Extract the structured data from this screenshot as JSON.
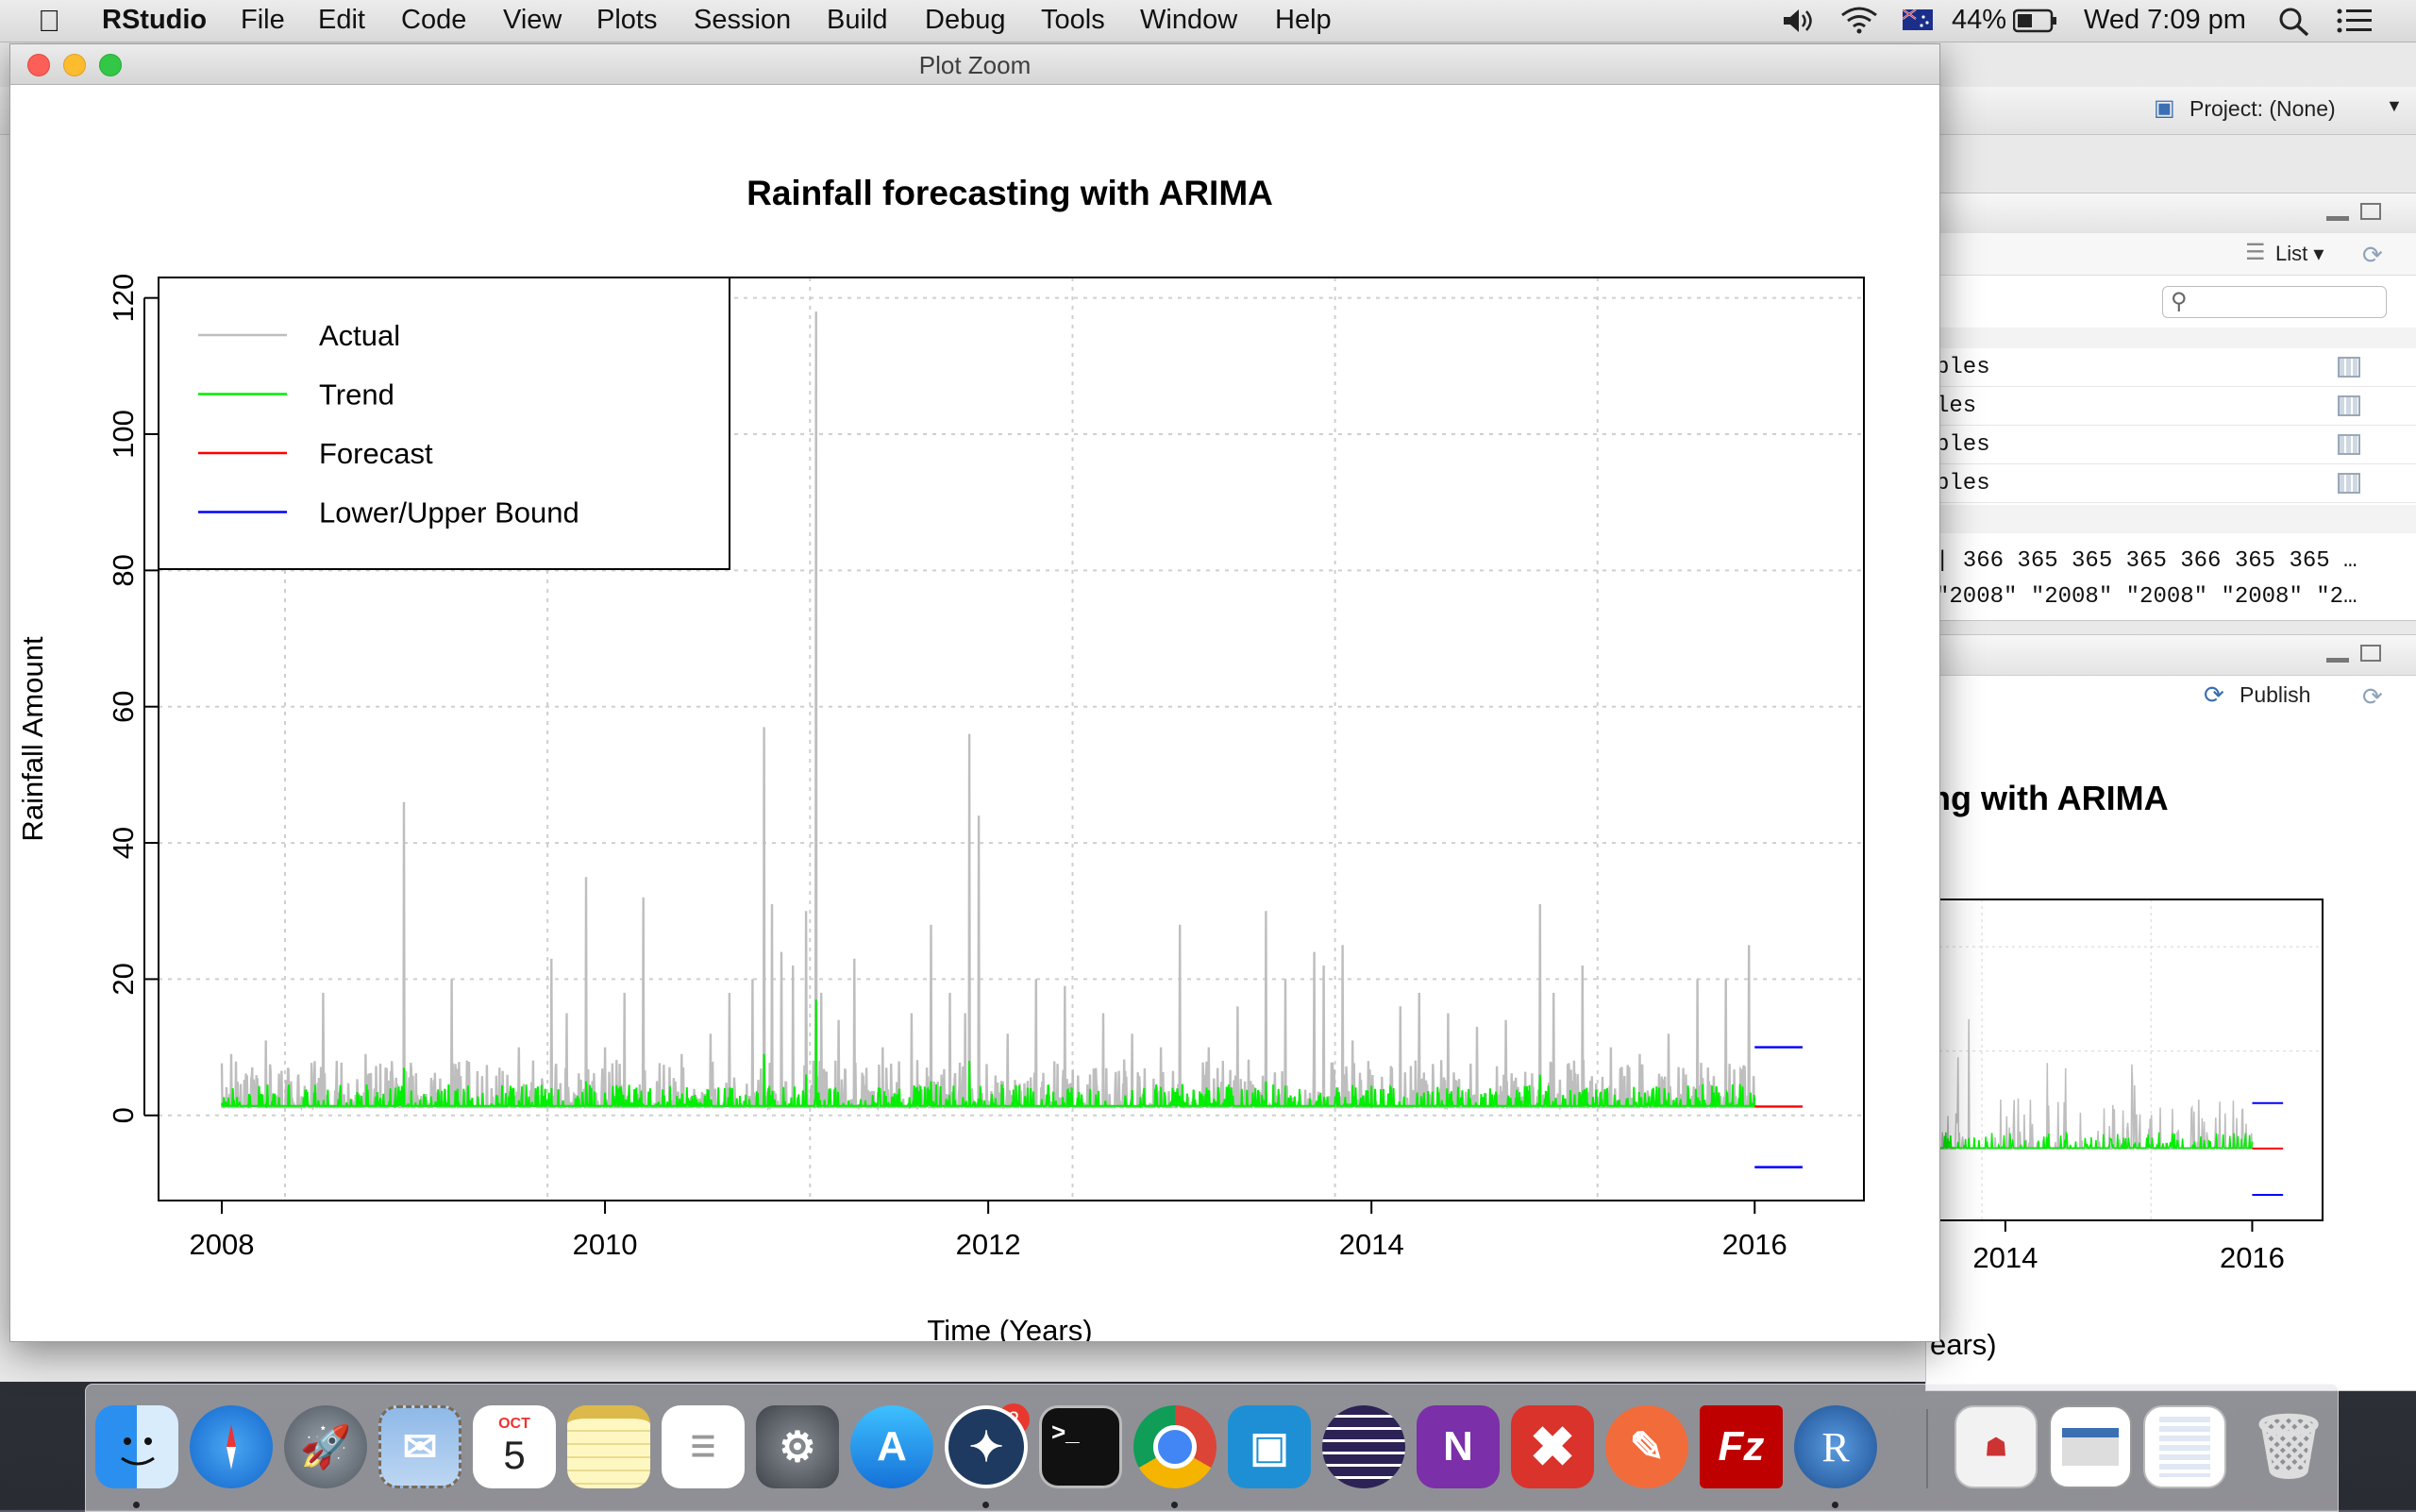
{
  "menubar": {
    "app_name": "RStudio",
    "menus": [
      "File",
      "Edit",
      "Code",
      "View",
      "Plots",
      "Session",
      "Build",
      "Debug",
      "Tools",
      "Window",
      "Help"
    ],
    "battery": "44%",
    "clock": "Wed 7:09 pm"
  },
  "background_window": {
    "project_label": "Project: (None)",
    "env_pane": {
      "list_label": "List",
      "rows": [
        "ples",
        "les",
        "ples",
        "ples"
      ],
      "value_line_1": "| 366 365 365 365 366 365 365 …",
      "value_line_2": "\"2008\" \"2008\" \"2008\" \"2008\" \"2…"
    },
    "plots_pane": {
      "publish_label": "Publish",
      "partial_title": "ng with ARIMA",
      "partial_xlabel": "ears)",
      "x_ticks": [
        "2014",
        "2016"
      ]
    }
  },
  "zoom_window": {
    "title": "Plot Zoom"
  },
  "chart_data": {
    "type": "line",
    "title": "Rainfall forecasting with ARIMA",
    "xlabel": "Time (Years)",
    "ylabel": "Rainfall Amount",
    "xlim": [
      2007.67,
      2016.57
    ],
    "ylim": [
      -12.5,
      123
    ],
    "x_ticks": [
      2008,
      2010,
      2012,
      2014,
      2016
    ],
    "y_ticks": [
      0,
      20,
      40,
      60,
      80,
      100,
      120
    ],
    "x_grid": [
      2008.33,
      2009.7,
      2011.07,
      2012.44,
      2013.81,
      2015.18
    ],
    "grid": true,
    "legend_position": "top-left",
    "legend": [
      {
        "label": "Actual",
        "color": "#bebebe"
      },
      {
        "label": "Trend",
        "color": "#00ee00"
      },
      {
        "label": "Forecast",
        "color": "#ff0000"
      },
      {
        "label": "Lower/Upper Bound",
        "color": "#0000ff"
      }
    ],
    "series": [
      {
        "name": "Actual",
        "color": "#bebebe",
        "baseline": 1.2,
        "spikes": [
          [
            2008.05,
            9
          ],
          [
            2008.12,
            5
          ],
          [
            2008.23,
            11
          ],
          [
            2008.4,
            6
          ],
          [
            2008.53,
            18
          ],
          [
            2008.6,
            8
          ],
          [
            2008.75,
            9
          ],
          [
            2008.95,
            46
          ],
          [
            2009.2,
            20
          ],
          [
            2009.45,
            7
          ],
          [
            2009.55,
            10
          ],
          [
            2009.72,
            23
          ],
          [
            2009.8,
            15
          ],
          [
            2009.9,
            35
          ],
          [
            2010.0,
            10
          ],
          [
            2010.1,
            18
          ],
          [
            2010.2,
            32
          ],
          [
            2010.4,
            9
          ],
          [
            2010.55,
            12
          ],
          [
            2010.65,
            18
          ],
          [
            2010.77,
            20
          ],
          [
            2010.83,
            57
          ],
          [
            2010.87,
            31
          ],
          [
            2010.92,
            24
          ],
          [
            2010.98,
            22
          ],
          [
            2011.05,
            30
          ],
          [
            2011.1,
            118
          ],
          [
            2011.13,
            18
          ],
          [
            2011.22,
            14
          ],
          [
            2011.3,
            23
          ],
          [
            2011.45,
            10
          ],
          [
            2011.6,
            15
          ],
          [
            2011.7,
            28
          ],
          [
            2011.8,
            18
          ],
          [
            2011.88,
            15
          ],
          [
            2011.9,
            56
          ],
          [
            2011.95,
            44
          ],
          [
            2012.1,
            12
          ],
          [
            2012.25,
            20
          ],
          [
            2012.4,
            19
          ],
          [
            2012.6,
            15
          ],
          [
            2012.75,
            12
          ],
          [
            2012.9,
            10
          ],
          [
            2013.0,
            28
          ],
          [
            2013.15,
            10
          ],
          [
            2013.3,
            16
          ],
          [
            2013.45,
            30
          ],
          [
            2013.55,
            20
          ],
          [
            2013.7,
            24
          ],
          [
            2013.75,
            22
          ],
          [
            2013.85,
            25
          ],
          [
            2013.9,
            11
          ],
          [
            2014.15,
            16
          ],
          [
            2014.25,
            18
          ],
          [
            2014.4,
            15
          ],
          [
            2014.55,
            13
          ],
          [
            2014.7,
            14
          ],
          [
            2014.88,
            31
          ],
          [
            2014.95,
            18
          ],
          [
            2015.1,
            22
          ],
          [
            2015.25,
            10
          ],
          [
            2015.4,
            9
          ],
          [
            2015.55,
            12
          ],
          [
            2015.7,
            20
          ],
          [
            2015.85,
            20
          ],
          [
            2015.97,
            25
          ]
        ]
      },
      {
        "name": "Trend",
        "color": "#00ee00",
        "baseline": 1.4,
        "spikes": [
          [
            2008.95,
            7
          ],
          [
            2009.72,
            4
          ],
          [
            2009.9,
            5
          ],
          [
            2010.83,
            9
          ],
          [
            2011.05,
            6
          ],
          [
            2011.1,
            17
          ],
          [
            2011.7,
            5
          ],
          [
            2011.9,
            8
          ],
          [
            2013.45,
            5
          ],
          [
            2014.88,
            6
          ]
        ]
      },
      {
        "name": "Forecast",
        "color": "#ff0000",
        "x": [
          2016.0,
          2016.25
        ],
        "y": [
          1.3,
          1.3
        ]
      },
      {
        "name": "Lower Bound",
        "color": "#0000ff",
        "x": [
          2016.0,
          2016.25
        ],
        "y": [
          -7.6,
          -7.6
        ]
      },
      {
        "name": "Upper Bound",
        "color": "#0000ff",
        "x": [
          2016.0,
          2016.25
        ],
        "y": [
          10.0,
          10.0
        ]
      }
    ]
  },
  "dock": {
    "apps": [
      "Finder",
      "Safari",
      "Launchpad",
      "Mail",
      "Calendar",
      "Notes",
      "Reminders",
      "System Preferences",
      "App Store",
      "SourceTree",
      "Terminal",
      "Chrome",
      "Remote Desktop",
      "Eclipse",
      "OneNote",
      "CrossOver",
      "Postman",
      "FileZilla",
      "R",
      "Preview",
      "Screenshot",
      "Chrome Downloads",
      "Trash"
    ],
    "calendar_month": "OCT",
    "calendar_day": "5",
    "app_store_badge": "2",
    "terminal_prompt": ">_",
    "filezilla_label": "Fz",
    "r_label": "R",
    "onenote_label": "N"
  }
}
